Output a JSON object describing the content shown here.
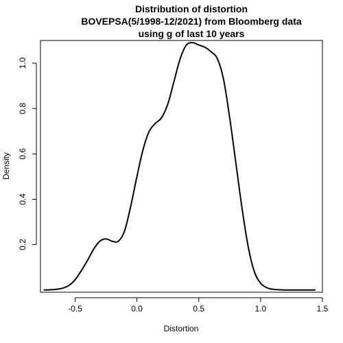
{
  "chart_data": {
    "type": "line",
    "title_lines": [
      "Distribution of distortion",
      "BOVEPSA(5/1998-12/2021) from Bloomberg data",
      "using g of last 10 years"
    ],
    "xlabel": "Distortion",
    "ylabel": "Density",
    "xlim": [
      -0.78,
      1.5
    ],
    "ylim": [
      -0.01,
      1.1
    ],
    "x_ticks": [
      -0.5,
      0.0,
      0.5,
      1.0,
      1.5
    ],
    "x_tick_labels": [
      "-0.5",
      "0.0",
      "0.5",
      "1.0",
      "1.5"
    ],
    "y_ticks": [
      0.2,
      0.4,
      0.6,
      0.8,
      1.0
    ],
    "y_tick_labels": [
      "0.2",
      "0.4",
      "0.6",
      "0.8",
      "1.0"
    ],
    "grid": false,
    "series": [
      {
        "x": [
          -0.75,
          -0.7,
          -0.65,
          -0.6,
          -0.55,
          -0.5,
          -0.45,
          -0.4,
          -0.35,
          -0.3,
          -0.25,
          -0.2,
          -0.15,
          -0.1,
          -0.05,
          0.0,
          0.05,
          0.1,
          0.15,
          0.2,
          0.25,
          0.3,
          0.35,
          0.4,
          0.45,
          0.5,
          0.55,
          0.6,
          0.65,
          0.7,
          0.75,
          0.8,
          0.85,
          0.9,
          0.95,
          1.0,
          1.05,
          1.1,
          1.15,
          1.2,
          1.25,
          1.3,
          1.35,
          1.4,
          1.44
        ],
        "y": [
          0.0,
          0.001,
          0.003,
          0.008,
          0.02,
          0.045,
          0.085,
          0.13,
          0.18,
          0.215,
          0.225,
          0.215,
          0.215,
          0.26,
          0.37,
          0.5,
          0.62,
          0.7,
          0.735,
          0.76,
          0.82,
          0.92,
          1.02,
          1.08,
          1.09,
          1.08,
          1.07,
          1.05,
          1.02,
          0.93,
          0.76,
          0.56,
          0.36,
          0.19,
          0.08,
          0.03,
          0.01,
          0.003,
          0.001,
          0.0,
          0.0,
          0.0,
          0.0,
          0.0,
          0.0
        ]
      }
    ]
  }
}
